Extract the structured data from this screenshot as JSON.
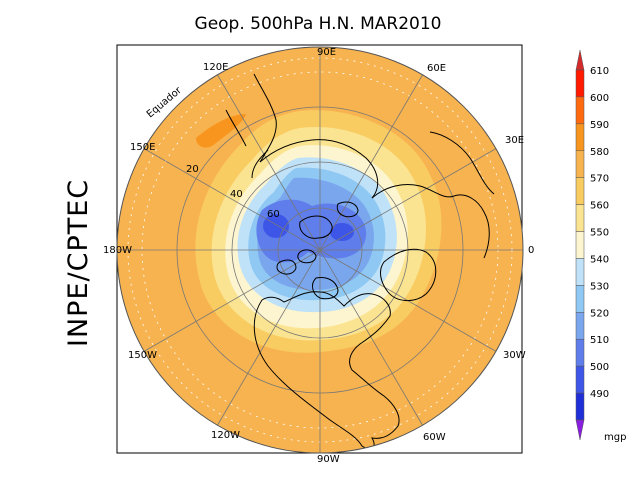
{
  "title": "Geop. 500hPa H.N. MAR2010",
  "side_label": "INPE/CPTEC",
  "map": {
    "projection": "polar stereographic, north pole",
    "longitude_labels": [
      "90E",
      "60E",
      "30E",
      "0",
      "30W",
      "60W",
      "90W",
      "120W",
      "150W",
      "180W",
      "150E",
      "120E"
    ],
    "latitude_labels": [
      "Equador",
      "20",
      "40",
      "60"
    ],
    "field_levels_outer_to_inner": [
      580,
      570,
      560,
      550,
      540,
      530,
      520,
      510
    ]
  },
  "colorbar": {
    "levels": [
      "610",
      "600",
      "590",
      "580",
      "570",
      "560",
      "550",
      "540",
      "530",
      "520",
      "510",
      "500",
      "490"
    ],
    "unit": "mgp",
    "colors": [
      "#ff1a00",
      "#ff6a10",
      "#f7951e",
      "#f7b34f",
      "#f9cc62",
      "#fbe491",
      "#fdf5cf",
      "#bfe2f8",
      "#8ec8f3",
      "#7aa6ee",
      "#5f7eeb",
      "#3d56e8",
      "#1f2fd8"
    ],
    "top_arrow_color": "#d42a2a",
    "bottom_arrow_color": "#8a1ee0"
  }
}
